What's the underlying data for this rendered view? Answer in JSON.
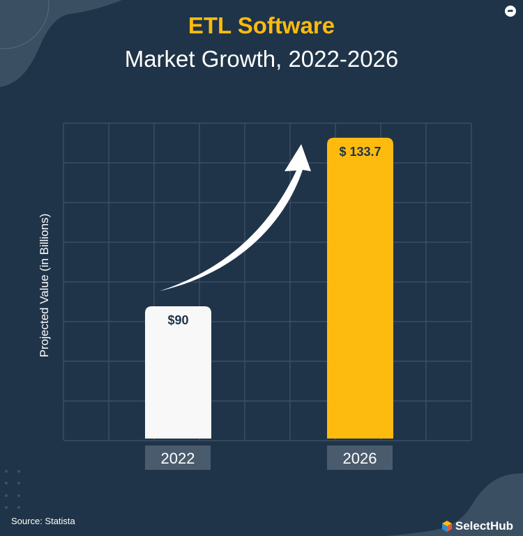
{
  "title": "ETL Software",
  "subtitle": "Market Growth, 2022-2026",
  "source": "Source: Statista",
  "brand": "SelectHub",
  "colors": {
    "background": "#1f3448",
    "bar_2022": "#f8f8f8",
    "bar_2026": "#fdbb0f",
    "title": "#fdbb0f"
  },
  "chart_data": {
    "type": "bar",
    "title": "ETL Software Market Growth, 2022-2026",
    "ylabel": "Projected Value (in Billions)",
    "xlabel": "",
    "categories": [
      "2022",
      "2026"
    ],
    "values": [
      90,
      133.7
    ],
    "data_labels": [
      "$90",
      "$ 133.7"
    ],
    "grid": true,
    "annotation": "upward curved arrow from 2022 bar to 2026 bar"
  }
}
